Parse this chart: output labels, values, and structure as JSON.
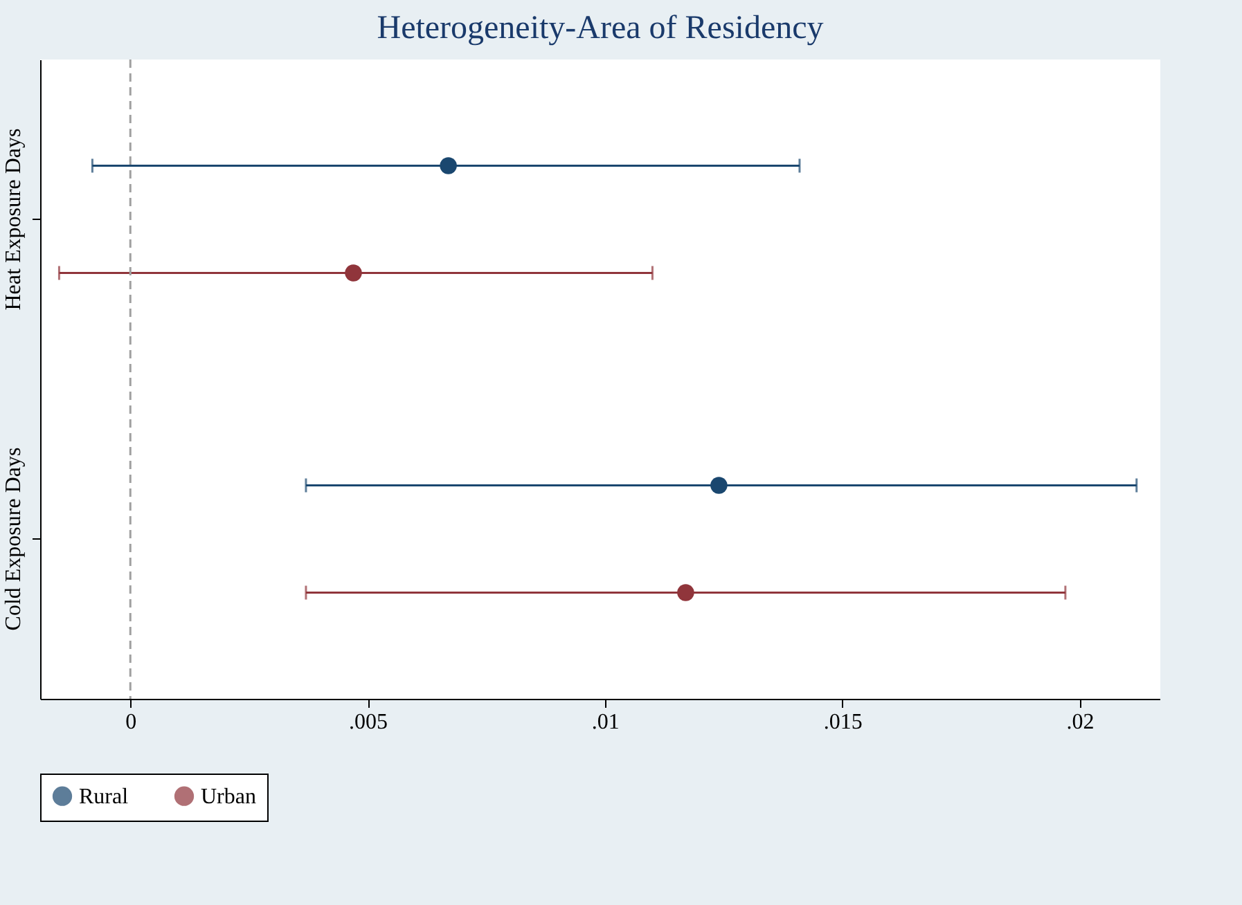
{
  "chart_data": {
    "type": "scatter",
    "orientation": "horizontal",
    "title": "Heterogeneity-Area of Residency",
    "categories": [
      "Heat Exposure Days",
      "Cold Exposure Days"
    ],
    "series": [
      {
        "name": "Rural",
        "color": "#1a476f",
        "values": [
          0.0067,
          0.0124
        ],
        "errors": [
          [
            -0.0008,
            0.0141
          ],
          [
            0.0037,
            0.0212
          ]
        ]
      },
      {
        "name": "Urban",
        "color": "#90353b",
        "values": [
          0.0047,
          0.0117
        ],
        "errors": [
          [
            -0.0015,
            0.011
          ],
          [
            0.0037,
            0.0197
          ]
        ]
      }
    ],
    "xlim": [
      -0.0019,
      0.0217
    ],
    "xticks": [
      0,
      {
        "value": 0.005,
        "label": ".005"
      },
      {
        "value": 0.01,
        "label": ".01"
      },
      {
        "value": 0.015,
        "label": ".015"
      },
      {
        "value": 0.02,
        "label": ".02"
      }
    ],
    "ref_lines": [
      {
        "axis": "x",
        "value": 0,
        "color": "#a0a0a0",
        "line_style": "dashed"
      }
    ],
    "marker": "circle",
    "grid": false,
    "legend": "bottom"
  }
}
